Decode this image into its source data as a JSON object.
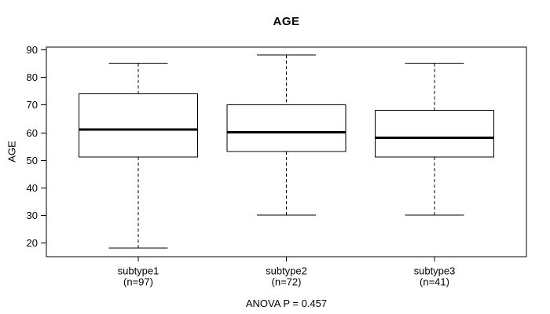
{
  "chart_data": {
    "type": "boxplot",
    "title": "AGE",
    "ylabel": "AGE",
    "xlabel": "",
    "annotation": "ANOVA P = 0.457",
    "ylim": [
      14.9,
      90.9
    ],
    "y_ticks": [
      20,
      30,
      40,
      50,
      60,
      70,
      80,
      90
    ],
    "grid": false,
    "legend": null,
    "line_color": "#000000",
    "box_fill": "#ffffff",
    "groups": [
      {
        "label": "subtype1",
        "sublabel": "(n=97)",
        "n": 97,
        "lower_whisker": 18,
        "q1": 51,
        "median": 61,
        "q3": 74,
        "upper_whisker": 85
      },
      {
        "label": "subtype2",
        "sublabel": "(n=72)",
        "n": 72,
        "lower_whisker": 30,
        "q1": 53,
        "median": 60,
        "q3": 70,
        "upper_whisker": 88
      },
      {
        "label": "subtype3",
        "sublabel": "(n=41)",
        "n": 41,
        "lower_whisker": 30,
        "q1": 51,
        "median": 58,
        "q3": 68,
        "upper_whisker": 85
      }
    ]
  }
}
